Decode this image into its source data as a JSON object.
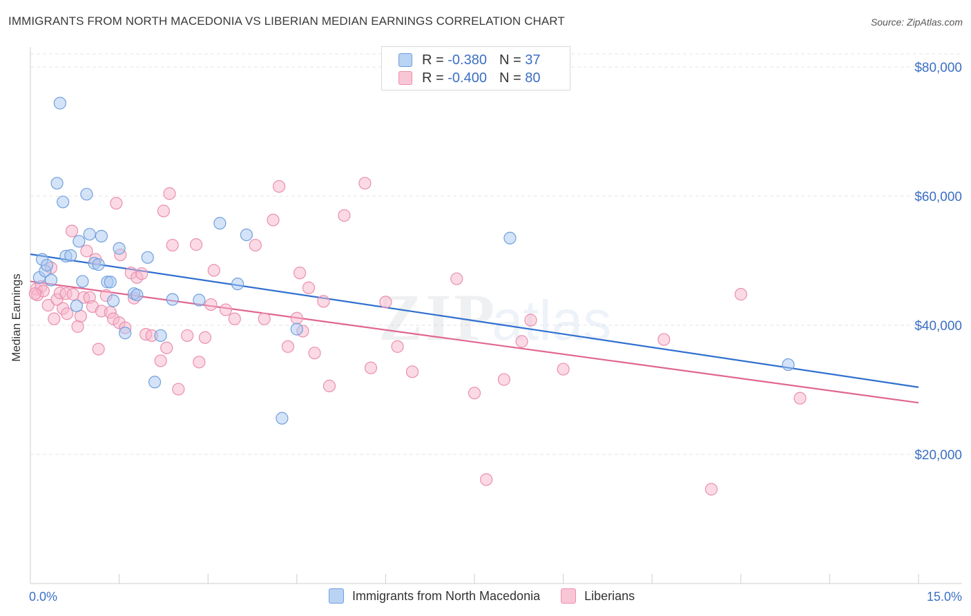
{
  "title": "IMMIGRANTS FROM NORTH MACEDONIA VS LIBERIAN MEDIAN EARNINGS CORRELATION CHART",
  "source": "Source: ZipAtlas.com",
  "watermark": {
    "zip": "ZIP",
    "atlas": "atlas"
  },
  "legend_top": [
    {
      "r_label": "R =",
      "r_value": "-0.380",
      "n_label": "N =",
      "n_value": "37"
    },
    {
      "r_label": "R =",
      "r_value": "-0.400",
      "n_label": "N =",
      "n_value": "80"
    }
  ],
  "legend_bottom": [
    {
      "label": "Immigrants from North Macedonia"
    },
    {
      "label": "Liberians"
    }
  ],
  "colors": {
    "blue_fill": "#a9c8f2",
    "blue_stroke": "#6f9fdc",
    "blue_line": "#2f6fcf",
    "pink_fill": "#f7b6cb",
    "pink_stroke": "#e98fac",
    "pink_line": "#e06590",
    "axis_label": "#3b6fc4"
  },
  "chart_data": {
    "type": "scatter",
    "xlabel": "",
    "ylabel": "Median Earnings",
    "xlim": [
      0,
      15
    ],
    "ylim": [
      0,
      82000
    ],
    "x_tick_labels": [
      "0.0%",
      "15.0%"
    ],
    "y_ticks": [
      20000,
      40000,
      60000,
      80000
    ],
    "y_tick_labels": [
      "$20,000",
      "$40,000",
      "$60,000",
      "$80,000"
    ],
    "grid": true,
    "series": [
      {
        "name": "Immigrants from North Macedonia",
        "color": "#a9c8f2",
        "trend": {
          "x": [
            0,
            15
          ],
          "y": [
            51000,
            30400
          ]
        },
        "points": [
          [
            0.15,
            47400
          ],
          [
            0.2,
            50200
          ],
          [
            0.25,
            48400
          ],
          [
            0.28,
            49300
          ],
          [
            0.35,
            47000
          ],
          [
            0.45,
            62000
          ],
          [
            0.5,
            74400
          ],
          [
            0.55,
            59100
          ],
          [
            0.6,
            50700
          ],
          [
            0.68,
            50800
          ],
          [
            0.78,
            43000
          ],
          [
            0.82,
            53000
          ],
          [
            0.88,
            46800
          ],
          [
            0.95,
            60300
          ],
          [
            1.0,
            54100
          ],
          [
            1.08,
            49600
          ],
          [
            1.15,
            49400
          ],
          [
            1.2,
            53800
          ],
          [
            1.3,
            46700
          ],
          [
            1.35,
            46700
          ],
          [
            1.4,
            43800
          ],
          [
            1.5,
            51900
          ],
          [
            1.6,
            38800
          ],
          [
            1.75,
            44900
          ],
          [
            1.98,
            50500
          ],
          [
            2.1,
            31200
          ],
          [
            2.2,
            38400
          ],
          [
            2.4,
            44000
          ],
          [
            2.85,
            43900
          ],
          [
            3.2,
            55800
          ],
          [
            3.5,
            46400
          ],
          [
            3.65,
            54000
          ],
          [
            4.25,
            25600
          ],
          [
            4.5,
            39400
          ],
          [
            8.1,
            53500
          ],
          [
            12.8,
            33900
          ],
          [
            1.8,
            44700
          ]
        ]
      },
      {
        "name": "Liberians",
        "color": "#f7b6cb",
        "trend": {
          "x": [
            0,
            15
          ],
          "y": [
            46800,
            28000
          ]
        },
        "points": [
          [
            0.1,
            45600
          ],
          [
            0.12,
            44700
          ],
          [
            0.18,
            46000
          ],
          [
            0.22,
            45300
          ],
          [
            0.3,
            43100
          ],
          [
            0.35,
            48900
          ],
          [
            0.4,
            41000
          ],
          [
            0.45,
            44000
          ],
          [
            0.5,
            45000
          ],
          [
            0.55,
            42600
          ],
          [
            0.6,
            44900
          ],
          [
            0.62,
            41800
          ],
          [
            0.7,
            54600
          ],
          [
            0.72,
            44800
          ],
          [
            0.8,
            39800
          ],
          [
            0.85,
            41400
          ],
          [
            0.9,
            44300
          ],
          [
            0.95,
            51500
          ],
          [
            1.0,
            44300
          ],
          [
            1.05,
            42900
          ],
          [
            1.1,
            50200
          ],
          [
            1.15,
            36300
          ],
          [
            1.2,
            42200
          ],
          [
            1.28,
            44600
          ],
          [
            1.35,
            42000
          ],
          [
            1.4,
            41000
          ],
          [
            1.45,
            58900
          ],
          [
            1.5,
            40400
          ],
          [
            1.52,
            50900
          ],
          [
            1.6,
            39600
          ],
          [
            1.7,
            48100
          ],
          [
            1.75,
            44200
          ],
          [
            1.8,
            47400
          ],
          [
            1.88,
            48000
          ],
          [
            1.95,
            38600
          ],
          [
            2.05,
            38400
          ],
          [
            2.2,
            34500
          ],
          [
            2.25,
            57700
          ],
          [
            2.3,
            36500
          ],
          [
            2.35,
            60400
          ],
          [
            2.4,
            52400
          ],
          [
            2.5,
            30100
          ],
          [
            2.65,
            38400
          ],
          [
            2.8,
            52500
          ],
          [
            2.85,
            34300
          ],
          [
            2.95,
            38100
          ],
          [
            3.05,
            43200
          ],
          [
            3.1,
            48500
          ],
          [
            3.3,
            42400
          ],
          [
            3.45,
            41000
          ],
          [
            3.8,
            52400
          ],
          [
            3.95,
            41000
          ],
          [
            4.1,
            56300
          ],
          [
            4.2,
            61500
          ],
          [
            4.35,
            36700
          ],
          [
            4.5,
            41100
          ],
          [
            4.55,
            48100
          ],
          [
            4.6,
            39100
          ],
          [
            4.7,
            45800
          ],
          [
            4.8,
            35700
          ],
          [
            4.95,
            43700
          ],
          [
            5.05,
            30600
          ],
          [
            5.3,
            57000
          ],
          [
            5.65,
            62000
          ],
          [
            5.75,
            33400
          ],
          [
            6.0,
            43600
          ],
          [
            6.2,
            36700
          ],
          [
            6.45,
            32800
          ],
          [
            7.2,
            47200
          ],
          [
            7.5,
            29500
          ],
          [
            7.7,
            16100
          ],
          [
            8.0,
            31600
          ],
          [
            8.3,
            37500
          ],
          [
            8.45,
            40800
          ],
          [
            9.0,
            33200
          ],
          [
            10.7,
            37800
          ],
          [
            12.0,
            44800
          ],
          [
            13.0,
            28700
          ],
          [
            11.5,
            14600
          ],
          [
            0.08,
            44900
          ]
        ]
      }
    ]
  }
}
